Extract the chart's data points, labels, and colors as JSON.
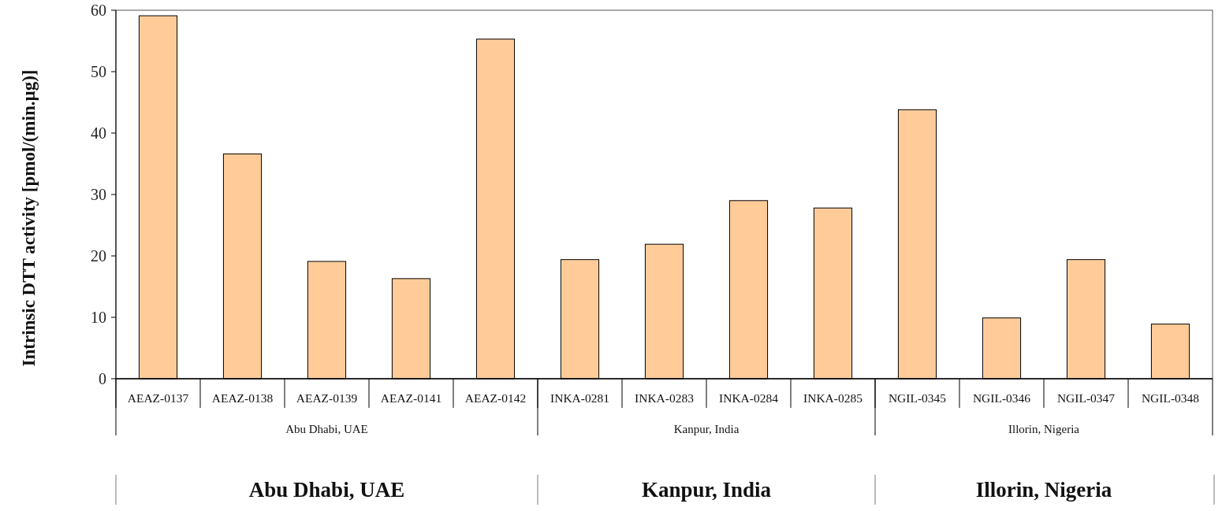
{
  "chart_data": {
    "type": "bar",
    "ylabel": "Intrinsic DTT activity [pmol/(min.µg)]",
    "categories": [
      "AEAZ-0137",
      "AEAZ-0138",
      "AEAZ-0139",
      "AEAZ-0141",
      "AEAZ-0142",
      "INKA-0281",
      "INKA-0283",
      "INKA-0284",
      "INKA-0285",
      "NGIL-0345",
      "NGIL-0346",
      "NGIL-0347",
      "NGIL-0348"
    ],
    "values": [
      59.1,
      36.6,
      19.1,
      16.3,
      55.3,
      19.4,
      21.9,
      29.0,
      27.8,
      43.8,
      9.9,
      19.4,
      8.9
    ],
    "color": "#ffcc99",
    "ylim": [
      0,
      60
    ],
    "yticks": [
      0,
      10,
      20,
      30,
      40,
      50,
      60
    ],
    "grid": false,
    "annotations": [
      "Abu Dhabi, UAE",
      "Kanpur, India",
      "Illorin, Nigeria",
      "Abu Dhabi, UAE",
      "Kanpur, India",
      "Illorin, Nigeria"
    ]
  }
}
